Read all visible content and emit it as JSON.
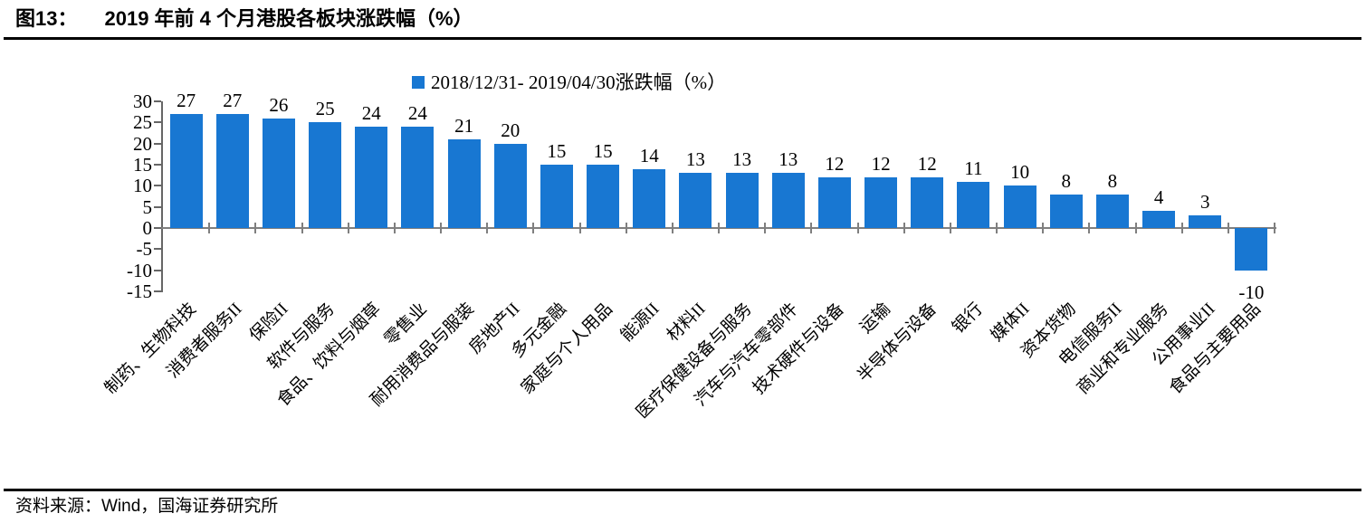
{
  "header": {
    "figure_label": "图13：",
    "title": "2019 年前 4 个月港股各板块涨跌幅（%）"
  },
  "chart": {
    "legend_label": "2018/12/31- 2019/04/30涨跌幅（%）"
  },
  "chart_data": {
    "type": "bar",
    "title": "2019 年前 4 个月港股各板块涨跌幅（%）",
    "legend": [
      "2018/12/31- 2019/04/30涨跌幅（%）"
    ],
    "legend_position": "top-center",
    "categories": [
      "制药、生物科技",
      "消费者服务II",
      "保险II",
      "软件与服务",
      "食品、饮料与烟草",
      "零售业",
      "耐用消费品与服装",
      "房地产II",
      "多元金融",
      "家庭与个人用品",
      "能源II",
      "材料II",
      "医疗保健设备与服务",
      "汽车与汽车零部件",
      "技术硬件与设备",
      "运输",
      "半导体与设备",
      "银行",
      "媒体II",
      "资本货物",
      "电信服务II",
      "商业和专业服务",
      "公用事业II",
      "食品与主要用品"
    ],
    "values": [
      27,
      27,
      26,
      25,
      24,
      24,
      21,
      20,
      15,
      15,
      14,
      13,
      13,
      13,
      12,
      12,
      12,
      11,
      10,
      8,
      8,
      4,
      3,
      -10
    ],
    "xlabel": "",
    "ylabel": "",
    "ylim": [
      -15,
      30
    ],
    "y_ticks": [
      30,
      25,
      20,
      15,
      10,
      5,
      0,
      -5,
      -10,
      -15
    ],
    "grid": false,
    "data_labels": true,
    "bar_color": "#1877D2",
    "axis_color": "#666666"
  },
  "footer": {
    "source": "资料来源：Wind，国海证券研究所"
  }
}
